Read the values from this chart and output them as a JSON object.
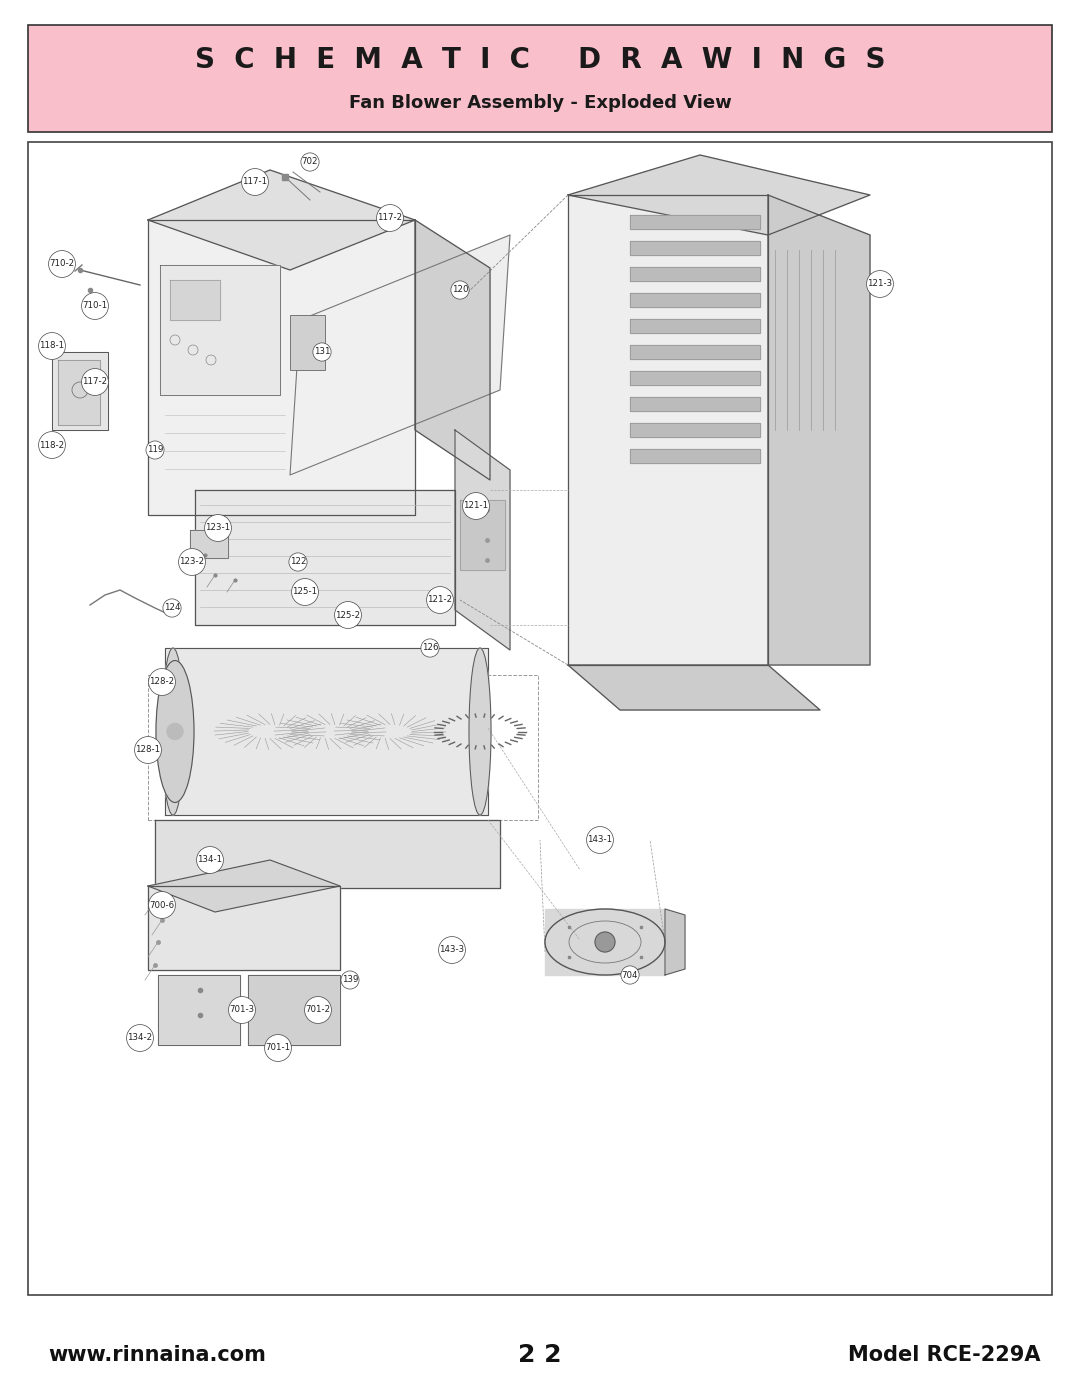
{
  "page_bg": "#ffffff",
  "header_bg": "#f9c0cb",
  "header_border": "#444444",
  "header_title": "S  C  H  E  M  A  T  I  C     D  R  A  W  I  N  G  S",
  "header_subtitle": "Fan Blower Assembly - Exploded View",
  "footer_left": "www.rinnaina.com",
  "footer_center": "2 2",
  "footer_right": "Model RCE-229A",
  "line_color": "#555555",
  "light_fill": "#f2f2f2",
  "mid_fill": "#e0e0e0",
  "dark_fill": "#c8c8c8",
  "title_fontsize": 20,
  "subtitle_fontsize": 13,
  "footer_fontsize": 15,
  "label_fontsize": 6.2
}
